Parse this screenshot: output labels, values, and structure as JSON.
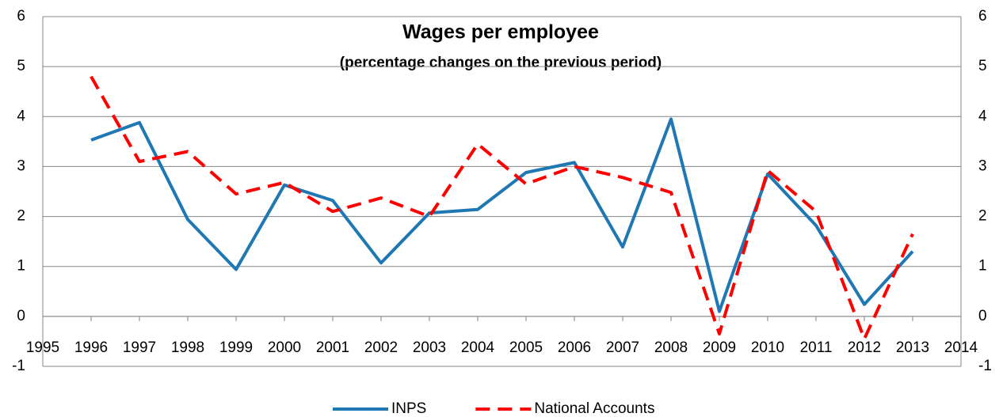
{
  "chart_data": {
    "type": "line",
    "title": "Wages per employee",
    "subtitle": "(percentage changes on the previous period)",
    "x": [
      1996,
      1997,
      1998,
      1999,
      2000,
      2001,
      2002,
      2003,
      2004,
      2005,
      2006,
      2007,
      2008,
      2009,
      2010,
      2011,
      2012,
      2013
    ],
    "series": [
      {
        "name": "INPS",
        "color": "#1f77b4",
        "dashed": false,
        "values": [
          3.53,
          3.88,
          1.94,
          0.94,
          2.63,
          2.32,
          1.07,
          2.07,
          2.14,
          2.88,
          3.08,
          1.39,
          3.95,
          0.1,
          2.85,
          1.82,
          0.24,
          1.3
        ]
      },
      {
        "name": "National Accounts",
        "color": "#ff0000",
        "dashed": true,
        "values": [
          4.8,
          3.1,
          3.3,
          2.45,
          2.68,
          2.1,
          2.37,
          2.0,
          3.45,
          2.65,
          3.0,
          2.78,
          2.48,
          -0.35,
          2.92,
          2.1,
          -0.45,
          1.65
        ]
      }
    ],
    "xlim": [
      1995,
      2014
    ],
    "xticks": [
      1995,
      1996,
      1997,
      1998,
      1999,
      2000,
      2001,
      2002,
      2003,
      2004,
      2005,
      2006,
      2007,
      2008,
      2009,
      2010,
      2011,
      2012,
      2013,
      2014
    ],
    "ylim": [
      -1,
      6
    ],
    "yticks": [
      -1,
      0,
      1,
      2,
      3,
      4,
      5,
      6
    ],
    "y2lim": [
      -1,
      6
    ],
    "y2ticks": [
      -1,
      0,
      1,
      2,
      3,
      4,
      5,
      6
    ],
    "grid": true,
    "legend": "bottom"
  }
}
